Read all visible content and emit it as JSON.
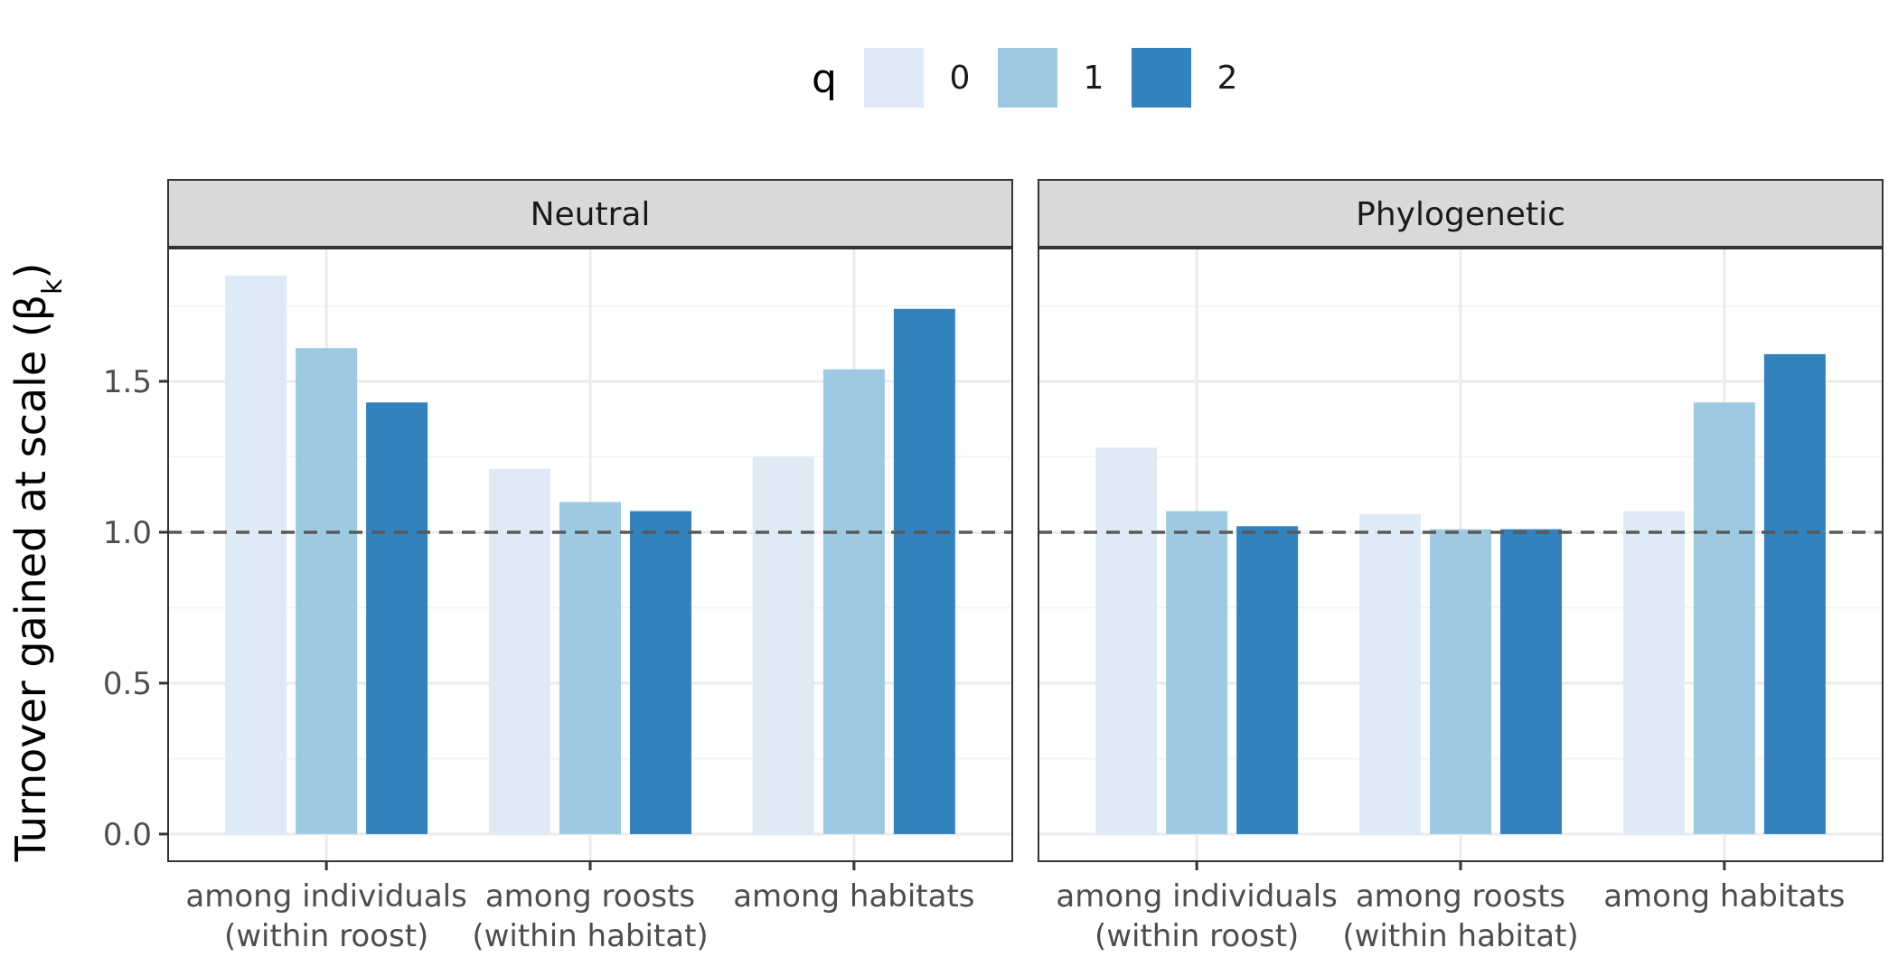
{
  "chart_data": {
    "type": "bar",
    "ylabel": "Turnover gained at scale (β",
    "ylabel_subscript": "k",
    "ylabel_close": ")",
    "categories": [
      {
        "line1": "among individuals",
        "line2": "(within roost)"
      },
      {
        "line1": "among roosts",
        "line2": "(within habitat)"
      },
      {
        "line1": "among habitats",
        "line2": ""
      }
    ],
    "yticks": [
      "0.0",
      "0.5",
      "1.0",
      "1.5"
    ],
    "ytick_values": [
      0,
      0.5,
      1.0,
      1.5
    ],
    "ylim": [
      -0.09,
      1.94
    ],
    "reference_line": 1.0,
    "legend": {
      "title": "q",
      "placement": "top",
      "entries": [
        {
          "label": "0",
          "color": "#deebf7"
        },
        {
          "label": "1",
          "color": "#9ecae1"
        },
        {
          "label": "2",
          "color": "#3182bd"
        }
      ]
    },
    "panels": [
      {
        "title": "Neutral",
        "series": [
          {
            "name": "0",
            "values": [
              1.85,
              1.21,
              1.25
            ]
          },
          {
            "name": "1",
            "values": [
              1.61,
              1.1,
              1.54
            ]
          },
          {
            "name": "2",
            "values": [
              1.43,
              1.07,
              1.74
            ]
          }
        ]
      },
      {
        "title": "Phylogenetic",
        "series": [
          {
            "name": "0",
            "values": [
              1.28,
              1.06,
              1.07
            ]
          },
          {
            "name": "1",
            "values": [
              1.07,
              1.01,
              1.43
            ]
          },
          {
            "name": "2",
            "values": [
              1.02,
              1.01,
              1.59
            ]
          }
        ]
      }
    ],
    "grid": true
  }
}
